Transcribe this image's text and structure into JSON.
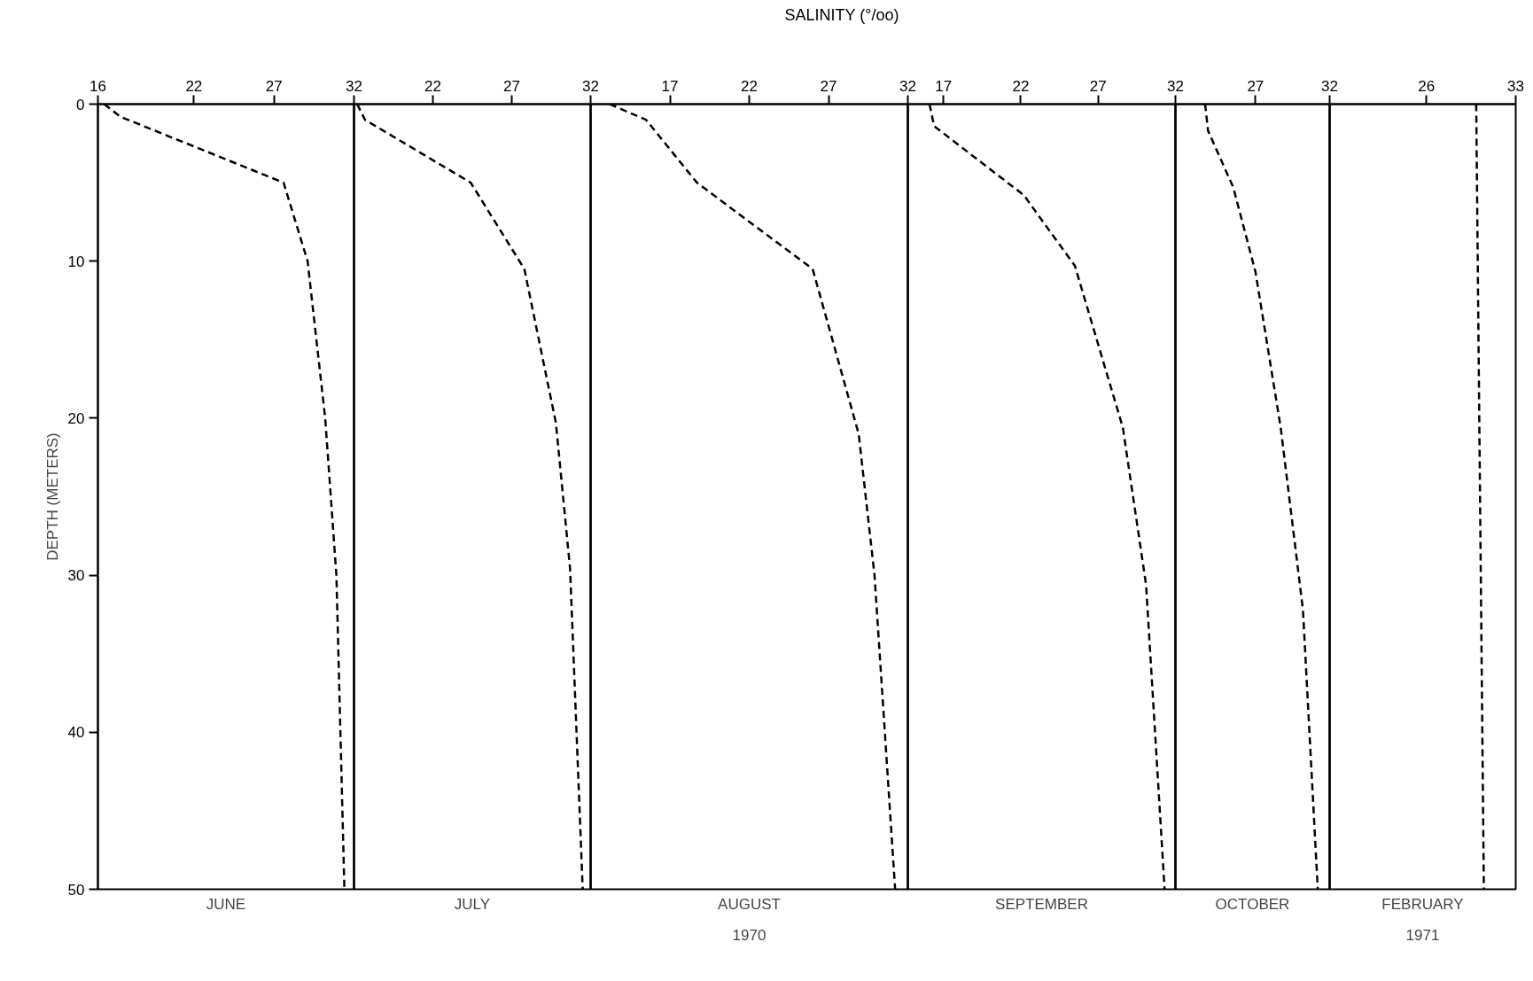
{
  "chart_data": [
    {
      "type": "other",
      "title": "SALINITY (°/oo)"
    },
    {
      "type": "line",
      "xlabel": "JUNE",
      "ylabel": "DEPTH (METERS)",
      "color": "#000000",
      "line_style": "dashed",
      "marker": "none",
      "grid": false,
      "x": [
        16.4,
        17.4,
        27.6,
        29.1,
        30.2,
        30.9,
        31.4
      ],
      "values": [
        0,
        0.8,
        5,
        10,
        20,
        30,
        50
      ],
      "xlim": [
        16,
        32
      ],
      "xticks": [
        16,
        22,
        27,
        32
      ],
      "ylim": [
        50,
        0
      ],
      "yticks": [
        0,
        10,
        20,
        30,
        40,
        50
      ]
    },
    {
      "type": "line",
      "xlabel": "JULY",
      "color": "#000000",
      "line_style": "dashed",
      "marker": "none",
      "grid": false,
      "tick_labels": "x",
      "x": [
        17.2,
        17.7,
        24.4,
        27.8,
        29.8,
        30.7,
        31.5
      ],
      "values": [
        0,
        1,
        5,
        10.5,
        20.3,
        29.6,
        50
      ],
      "xlim": [
        17,
        32
      ],
      "xticks": [
        22,
        27,
        32
      ],
      "ylim": [
        50,
        0
      ],
      "yticks": [
        0,
        10,
        20,
        30,
        40,
        50
      ]
    },
    {
      "type": "line",
      "xlabel": "AUGUST",
      "annotations": [
        "1970"
      ],
      "color": "#000000",
      "line_style": "dashed",
      "marker": "none",
      "grid": false,
      "tick_labels": "x",
      "x": [
        13.2,
        15.5,
        18.7,
        26.0,
        28.9,
        29.9,
        31.2
      ],
      "values": [
        0,
        1,
        5,
        10.5,
        21,
        30,
        50
      ],
      "xlim": [
        12,
        32
      ],
      "xticks": [
        17,
        22,
        27,
        32
      ],
      "ylim": [
        50,
        0
      ],
      "yticks": [
        0,
        10,
        20,
        30,
        40,
        50
      ]
    },
    {
      "type": "line",
      "xlabel": "SEPTEMBER",
      "color": "#000000",
      "line_style": "dashed",
      "marker": "none",
      "grid": false,
      "tick_labels": "x",
      "x": [
        16.1,
        16.4,
        22.2,
        25.5,
        28.6,
        30.1,
        31.3
      ],
      "values": [
        0,
        1.4,
        5.8,
        10.3,
        20.6,
        30.6,
        50
      ],
      "xlim": [
        14.7,
        32
      ],
      "xticks": [
        17,
        22,
        27,
        32
      ],
      "ylim": [
        50,
        0
      ],
      "yticks": [
        0,
        10,
        20,
        30,
        40,
        50
      ]
    },
    {
      "type": "line",
      "xlabel": "OCTOBER",
      "color": "#000000",
      "line_style": "dashed",
      "marker": "none",
      "grid": false,
      "tick_labels": "x",
      "x": [
        23.6,
        23.8,
        25.5,
        27.0,
        28.7,
        30.2,
        31.2
      ],
      "values": [
        0,
        1.7,
        5.3,
        10.7,
        20.6,
        32.2,
        50
      ],
      "xlim": [
        21.6,
        32
      ],
      "xticks": [
        27,
        32
      ],
      "ylim": [
        50,
        0
      ],
      "yticks": [
        0,
        10,
        20,
        30,
        40,
        50
      ]
    },
    {
      "type": "line",
      "xlabel": "FEBRUARY",
      "annotations": [
        "1971"
      ],
      "color": "#000000",
      "line_style": "dashed",
      "marker": "none",
      "grid": false,
      "tick_labels": "x",
      "x": [
        29.9,
        30.2,
        30.5
      ],
      "values": [
        0,
        25,
        50
      ],
      "xlim": [
        18.4,
        33
      ],
      "xticks": [
        26,
        33
      ],
      "ylim": [
        50,
        0
      ],
      "yticks": [
        0,
        10,
        20,
        30,
        40,
        50
      ]
    }
  ]
}
